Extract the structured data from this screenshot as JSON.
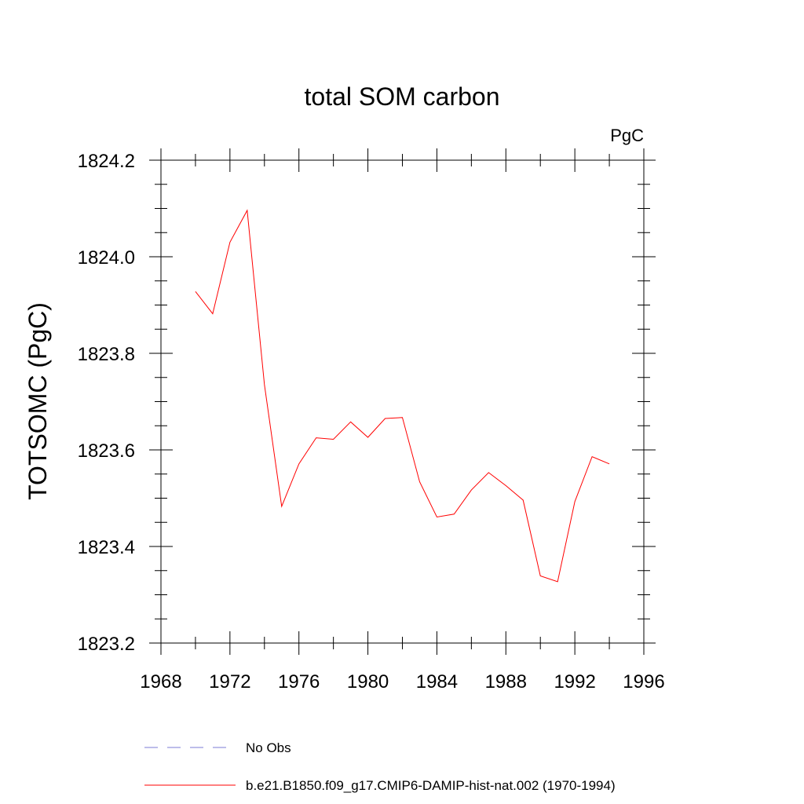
{
  "chart_data": {
    "type": "line",
    "title": "total SOM carbon",
    "units": "PgC",
    "ylabel": "TOTSOMC  (PgC)",
    "xlabel": "",
    "xlim": [
      1968,
      1996
    ],
    "ylim": [
      1823.2,
      1824.2
    ],
    "x_ticks": [
      1968,
      1972,
      1976,
      1980,
      1984,
      1988,
      1992,
      1996
    ],
    "y_ticks": [
      1823.2,
      1823.4,
      1823.6,
      1823.8,
      1824.0,
      1824.2
    ],
    "x_tick_labels": [
      "1968",
      "1972",
      "1976",
      "1980",
      "1984",
      "1988",
      "1992",
      "1996"
    ],
    "y_tick_labels": [
      "1823.2",
      "1823.4",
      "1823.6",
      "1823.8",
      "1824.0",
      "1824.2"
    ],
    "x_minor_step": 2,
    "y_minor_step": 0.05,
    "grid": false,
    "legend_position": "bottom",
    "series": [
      {
        "name": "b.e21.B1850.f09_g17.CMIP6-DAMIP-hist-nat.002 (1970-1994)",
        "color": "#ff0000",
        "style": "solid",
        "x": [
          1970,
          1971,
          1972,
          1973,
          1974,
          1975,
          1976,
          1977,
          1978,
          1979,
          1980,
          1981,
          1982,
          1983,
          1984,
          1985,
          1986,
          1987,
          1988,
          1989,
          1990,
          1991,
          1992,
          1993,
          1994
        ],
        "y": [
          1823.928,
          1823.882,
          1824.03,
          1824.096,
          1823.735,
          1823.483,
          1823.571,
          1823.625,
          1823.622,
          1823.658,
          1823.626,
          1823.665,
          1823.667,
          1823.534,
          1823.461,
          1823.467,
          1823.517,
          1823.553,
          1823.526,
          1823.496,
          1823.339,
          1823.327,
          1823.493,
          1823.586,
          1823.571
        ]
      }
    ],
    "legend": [
      {
        "label": "No Obs",
        "color": "#7b7bd6",
        "style": "dashed"
      },
      {
        "label": "b.e21.B1850.f09_g17.CMIP6-DAMIP-hist-nat.002 (1970-1994)",
        "color": "#ff0000",
        "style": "solid"
      }
    ]
  }
}
